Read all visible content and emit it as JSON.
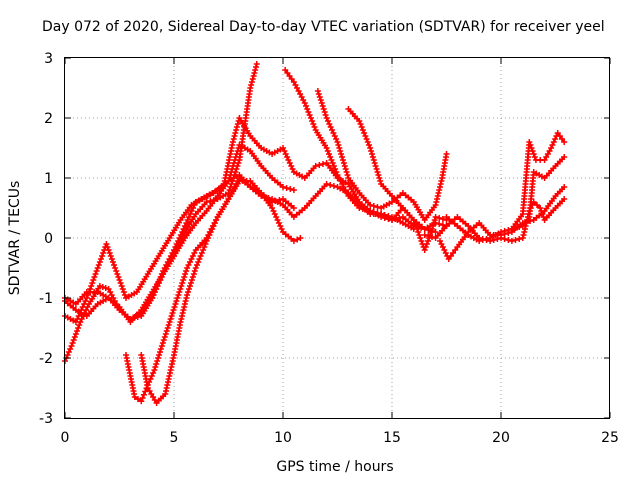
{
  "chart_data": {
    "type": "scatter",
    "title": "Day 072 of 2020, Sidereal Day-to-day VTEC variation (SDTVAR) for receiver yeel",
    "xlabel": "GPS time / hours",
    "ylabel": "SDTVAR / TECUs",
    "xlim": [
      0,
      25
    ],
    "ylim": [
      -3,
      3
    ],
    "x_ticks": [
      0,
      5,
      10,
      15,
      20,
      25
    ],
    "y_ticks": [
      -3,
      -2,
      -1,
      0,
      1,
      2,
      3
    ],
    "x_tick_labels": [
      "0",
      "5",
      "10",
      "15",
      "20",
      "25"
    ],
    "y_tick_labels": [
      "-3",
      "-2",
      "-1",
      "0",
      "1",
      "2",
      "3"
    ],
    "grid": true,
    "marker": "+",
    "color": "#ff0000",
    "series": [
      {
        "name": "trace-1",
        "points": [
          [
            0.0,
            -1.0
          ],
          [
            0.5,
            -1.1
          ],
          [
            1.0,
            -0.9
          ],
          [
            1.5,
            -0.9
          ],
          [
            2.0,
            -1.0
          ],
          [
            2.5,
            -1.2
          ],
          [
            3.0,
            -1.35
          ],
          [
            3.5,
            -1.25
          ],
          [
            4.0,
            -1.0
          ],
          [
            4.5,
            -0.6
          ],
          [
            5.0,
            -0.3
          ],
          [
            5.5,
            0.1
          ],
          [
            6.0,
            0.4
          ],
          [
            6.5,
            0.6
          ],
          [
            7.0,
            0.65
          ],
          [
            7.5,
            0.75
          ],
          [
            8.0,
            1.3
          ],
          [
            8.5,
            2.5
          ],
          [
            8.8,
            2.9
          ]
        ]
      },
      {
        "name": "trace-2",
        "points": [
          [
            0.0,
            -1.3
          ],
          [
            0.5,
            -1.4
          ],
          [
            1.0,
            -1.0
          ],
          [
            1.5,
            -0.5
          ],
          [
            1.9,
            -0.1
          ],
          [
            2.3,
            -0.5
          ],
          [
            2.8,
            -1.0
          ],
          [
            3.3,
            -0.9
          ],
          [
            3.8,
            -0.6
          ],
          [
            4.3,
            -0.3
          ],
          [
            4.8,
            0.0
          ],
          [
            5.3,
            0.3
          ],
          [
            5.8,
            0.55
          ],
          [
            6.3,
            0.65
          ],
          [
            6.8,
            0.75
          ],
          [
            7.3,
            0.9
          ],
          [
            7.7,
            1.6
          ],
          [
            8.0,
            2.0
          ],
          [
            8.5,
            1.7
          ],
          [
            9.0,
            1.5
          ],
          [
            9.5,
            1.4
          ],
          [
            10.0,
            1.5
          ],
          [
            10.5,
            1.1
          ],
          [
            11.0,
            1.0
          ],
          [
            11.5,
            1.2
          ],
          [
            12.0,
            1.25
          ],
          [
            12.5,
            1.0
          ],
          [
            13.0,
            0.9
          ],
          [
            13.5,
            0.6
          ],
          [
            14.0,
            0.45
          ],
          [
            14.5,
            0.4
          ],
          [
            15.0,
            0.35
          ],
          [
            15.5,
            0.25
          ],
          [
            16.0,
            0.15
          ]
        ]
      },
      {
        "name": "trace-3",
        "points": [
          [
            0.0,
            -1.05
          ],
          [
            0.5,
            -1.2
          ],
          [
            1.0,
            -1.3
          ],
          [
            1.5,
            -1.1
          ],
          [
            2.0,
            -1.0
          ],
          [
            2.5,
            -1.15
          ],
          [
            3.0,
            -1.4
          ],
          [
            3.5,
            -1.2
          ],
          [
            4.0,
            -0.9
          ],
          [
            4.5,
            -0.6
          ],
          [
            5.0,
            -0.3
          ],
          [
            5.5,
            0.0
          ],
          [
            6.0,
            0.25
          ],
          [
            6.5,
            0.45
          ],
          [
            7.0,
            0.7
          ],
          [
            7.5,
            0.95
          ],
          [
            8.0,
            1.55
          ],
          [
            8.5,
            1.45
          ],
          [
            9.0,
            1.2
          ],
          [
            9.5,
            1.0
          ],
          [
            10.0,
            0.85
          ],
          [
            10.5,
            0.8
          ]
        ]
      },
      {
        "name": "trace-4",
        "points": [
          [
            0.0,
            -2.05
          ],
          [
            0.3,
            -1.8
          ],
          [
            0.7,
            -1.4
          ],
          [
            1.1,
            -1.1
          ],
          [
            1.6,
            -0.8
          ],
          [
            2.0,
            -0.85
          ],
          [
            2.5,
            -1.2
          ],
          [
            3.0,
            -1.35
          ],
          [
            3.5,
            -1.3
          ],
          [
            4.0,
            -1.0
          ],
          [
            4.5,
            -0.55
          ],
          [
            5.0,
            -0.2
          ],
          [
            5.5,
            0.2
          ],
          [
            6.0,
            0.6
          ],
          [
            6.5,
            0.7
          ],
          [
            7.0,
            0.8
          ],
          [
            7.5,
            0.95
          ],
          [
            8.0,
            1.05
          ],
          [
            8.5,
            0.85
          ],
          [
            9.0,
            0.7
          ],
          [
            9.5,
            0.65
          ],
          [
            10.0,
            0.55
          ],
          [
            10.5,
            0.35
          ],
          [
            11.0,
            0.5
          ],
          [
            11.5,
            0.7
          ],
          [
            12.0,
            0.9
          ],
          [
            12.5,
            0.85
          ],
          [
            13.0,
            0.75
          ],
          [
            13.5,
            0.55
          ],
          [
            14.0,
            0.4
          ],
          [
            14.5,
            0.4
          ],
          [
            15.0,
            0.3
          ],
          [
            15.5,
            0.35
          ],
          [
            16.0,
            0.2
          ],
          [
            16.5,
            0.15
          ],
          [
            17.0,
            0.1
          ]
        ]
      },
      {
        "name": "trace-5",
        "points": [
          [
            2.8,
            -1.95
          ],
          [
            3.0,
            -2.3
          ],
          [
            3.2,
            -2.65
          ],
          [
            3.5,
            -2.72
          ],
          [
            3.8,
            -2.45
          ],
          [
            4.1,
            -2.2
          ],
          [
            4.4,
            -1.85
          ],
          [
            4.8,
            -1.4
          ],
          [
            5.2,
            -0.95
          ],
          [
            5.6,
            -0.5
          ],
          [
            6.0,
            -0.2
          ],
          [
            6.5,
            0.0
          ],
          [
            7.0,
            0.35
          ],
          [
            7.5,
            0.65
          ],
          [
            8.0,
            1.0
          ],
          [
            8.5,
            0.85
          ],
          [
            9.0,
            0.75
          ],
          [
            9.5,
            0.5
          ],
          [
            10.0,
            0.1
          ],
          [
            10.5,
            -0.05
          ],
          [
            10.8,
            0.0
          ]
        ]
      },
      {
        "name": "trace-6",
        "points": [
          [
            3.5,
            -1.95
          ],
          [
            3.8,
            -2.5
          ],
          [
            4.2,
            -2.75
          ],
          [
            4.6,
            -2.6
          ],
          [
            5.0,
            -1.95
          ],
          [
            5.3,
            -1.4
          ],
          [
            5.6,
            -0.95
          ],
          [
            6.0,
            -0.5
          ],
          [
            6.5,
            -0.05
          ],
          [
            7.0,
            0.35
          ],
          [
            7.5,
            0.65
          ],
          [
            8.0,
            0.95
          ],
          [
            8.5,
            0.95
          ],
          [
            9.0,
            0.75
          ],
          [
            9.5,
            0.6
          ],
          [
            10.0,
            0.65
          ],
          [
            10.5,
            0.5
          ]
        ]
      },
      {
        "name": "trace-7",
        "points": [
          [
            10.1,
            2.8
          ],
          [
            10.5,
            2.6
          ],
          [
            11.0,
            2.25
          ],
          [
            11.5,
            1.8
          ],
          [
            12.0,
            1.5
          ],
          [
            12.5,
            1.05
          ],
          [
            13.0,
            0.7
          ],
          [
            13.5,
            0.5
          ],
          [
            14.0,
            0.45
          ],
          [
            14.5,
            0.35
          ],
          [
            15.0,
            0.3
          ],
          [
            15.5,
            0.5
          ],
          [
            16.0,
            0.3
          ],
          [
            16.5,
            0.15
          ],
          [
            17.0,
            0.25
          ],
          [
            17.5,
            0.2
          ]
        ]
      },
      {
        "name": "trace-8",
        "points": [
          [
            11.6,
            2.45
          ],
          [
            12.0,
            2.0
          ],
          [
            12.5,
            1.6
          ],
          [
            13.0,
            1.0
          ],
          [
            13.5,
            0.75
          ],
          [
            14.0,
            0.55
          ],
          [
            14.5,
            0.5
          ],
          [
            15.0,
            0.6
          ],
          [
            15.5,
            0.75
          ],
          [
            16.0,
            0.6
          ],
          [
            16.5,
            0.3
          ],
          [
            17.0,
            0.55
          ],
          [
            17.3,
            1.0
          ],
          [
            17.5,
            1.4
          ]
        ]
      },
      {
        "name": "trace-9",
        "points": [
          [
            13.0,
            2.15
          ],
          [
            13.5,
            1.95
          ],
          [
            14.0,
            1.5
          ],
          [
            14.5,
            0.9
          ],
          [
            15.0,
            0.7
          ],
          [
            15.5,
            0.5
          ],
          [
            16.0,
            0.3
          ],
          [
            16.3,
            0.0
          ],
          [
            16.5,
            -0.2
          ],
          [
            16.8,
            0.1
          ],
          [
            17.0,
            0.35
          ],
          [
            17.5,
            0.3
          ]
        ]
      },
      {
        "name": "trace-10",
        "points": [
          [
            17.2,
            -0.05
          ],
          [
            17.6,
            -0.35
          ],
          [
            18.0,
            -0.15
          ],
          [
            18.5,
            0.1
          ],
          [
            19.0,
            0.25
          ],
          [
            19.5,
            0.05
          ],
          [
            20.0,
            0.05
          ],
          [
            20.5,
            0.1
          ],
          [
            21.0,
            0.25
          ],
          [
            21.5,
            0.3
          ],
          [
            22.0,
            0.45
          ],
          [
            22.5,
            0.7
          ],
          [
            22.9,
            0.85
          ]
        ]
      },
      {
        "name": "trace-11",
        "points": [
          [
            17.5,
            0.35
          ],
          [
            18.0,
            0.2
          ],
          [
            18.5,
            0.05
          ],
          [
            19.0,
            -0.05
          ],
          [
            19.5,
            0.0
          ],
          [
            20.0,
            0.1
          ],
          [
            20.5,
            0.15
          ],
          [
            21.0,
            0.2
          ],
          [
            21.3,
            0.35
          ],
          [
            21.5,
            1.1
          ],
          [
            22.0,
            1.0
          ],
          [
            22.5,
            1.2
          ],
          [
            22.9,
            1.35
          ]
        ]
      },
      {
        "name": "trace-12",
        "points": [
          [
            16.5,
            0.05
          ],
          [
            17.0,
            0.0
          ],
          [
            17.5,
            0.2
          ],
          [
            18.0,
            0.35
          ],
          [
            18.5,
            0.2
          ],
          [
            19.0,
            0.0
          ],
          [
            19.5,
            -0.05
          ],
          [
            20.0,
            0.0
          ],
          [
            20.5,
            -0.05
          ],
          [
            21.0,
            0.0
          ],
          [
            21.3,
            0.45
          ],
          [
            21.5,
            0.6
          ],
          [
            21.8,
            0.5
          ],
          [
            22.0,
            0.3
          ],
          [
            22.5,
            0.5
          ],
          [
            22.9,
            0.65
          ]
        ]
      },
      {
        "name": "trace-13",
        "points": [
          [
            20.5,
            0.15
          ],
          [
            21.0,
            0.4
          ],
          [
            21.3,
            1.6
          ],
          [
            21.6,
            1.3
          ],
          [
            22.0,
            1.3
          ],
          [
            22.3,
            1.5
          ],
          [
            22.6,
            1.75
          ],
          [
            22.9,
            1.6
          ]
        ]
      }
    ]
  }
}
